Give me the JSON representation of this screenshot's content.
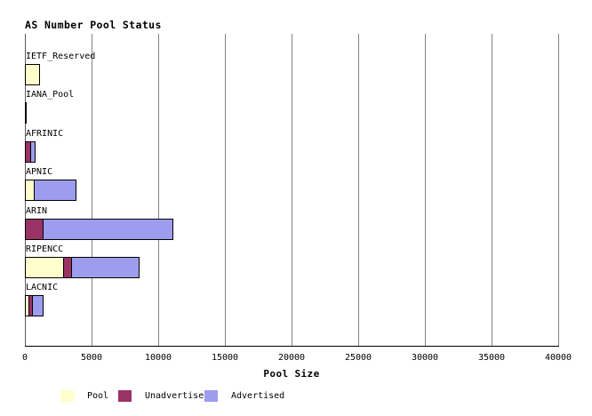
{
  "colors": {
    "pool": "#ffffcc",
    "unadvertised": "#993366",
    "advertised": "#9d9dee",
    "gridline": "#848484",
    "axis": "#000000",
    "background": "#ffffff"
  },
  "chart_data": {
    "type": "bar",
    "orientation": "horizontal-stacked",
    "title": "AS Number Pool Status",
    "xlabel": "Pool Size",
    "ylabel": "",
    "xlim": [
      0,
      40000
    ],
    "xticks": [
      0,
      5000,
      10000,
      15000,
      20000,
      25000,
      30000,
      35000,
      40000
    ],
    "grid": "vertical-gray-lines",
    "legend_position": "bottom",
    "categories": [
      "IETF_Reserved",
      "IANA_Pool",
      "AFRINIC",
      "APNIC",
      "ARIN",
      "RIPENCC",
      "LACNIC"
    ],
    "series": [
      {
        "name": "Pool",
        "color": "#ffffcc",
        "values": [
          1000,
          30,
          0,
          600,
          0,
          2800,
          200
        ]
      },
      {
        "name": "Unadvertised",
        "color": "#993366",
        "values": [
          0,
          0,
          300,
          0,
          1270,
          530,
          200
        ]
      },
      {
        "name": "Advertised",
        "color": "#9d9dee",
        "values": [
          0,
          0,
          330,
          3070,
          9670,
          5000,
          710
        ]
      }
    ]
  }
}
